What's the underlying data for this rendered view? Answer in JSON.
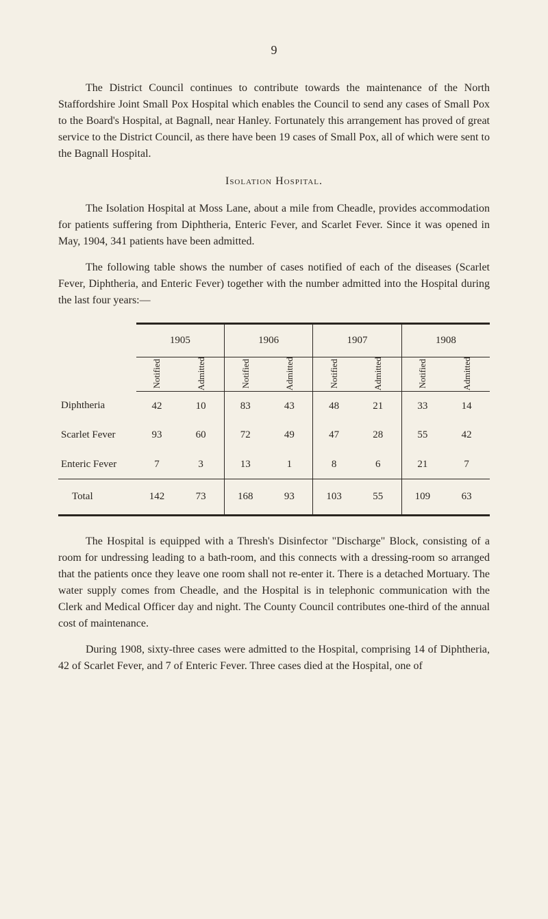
{
  "page_number": "9",
  "paragraphs": {
    "p1": "The District Council continues to contribute towards the maintenance of the North Staffordshire Joint Small Pox Hospital which enables the Council to send any cases of Small Pox to the Board's Hospital, at Bagnall, near Hanley. Fortunately this arrangement has proved of great service to the District Council, as there have been 19 cases of Small Pox, all of which were sent to the Bagnall Hospital.",
    "heading1": "Isolation Hospital.",
    "p2": "The Isolation Hospital at Moss Lane, about a mile from Cheadle, provides accommodation for patients suffering from Diphtheria, Enteric Fever, and Scarlet Fever. Since it was opened in May, 1904, 341 patients have been admitted.",
    "p3": "The following table shows the number of cases notified of each of the diseases (Scarlet Fever, Diphtheria, and Enteric Fever) together with the number admitted into the Hospital during the last four years:—",
    "p4": "The Hospital is equipped with a Thresh's Disinfector \"Discharge\" Block, consisting of a room for undressing leading to a bath-room, and this connects with a dressing-room so arranged that the patients once they leave one room shall not re-enter it. There is a detached Mortuary. The water supply comes from Cheadle, and the Hospital is in telephonic communication with the Clerk and Medical Officer day and night. The County Council contributes one-third of the annual cost of maintenance.",
    "p5": "During 1908, sixty-three cases were admitted to the Hospital, comprising 14 of Diphtheria, 42 of Scarlet Fever, and 7 of Enteric Fever. Three cases died at the Hospital, one of"
  },
  "table": {
    "years": [
      "1905",
      "1906",
      "1907",
      "1908"
    ],
    "sub_headers": [
      "Notified",
      "Admitted"
    ],
    "rows": [
      {
        "label": "Diphtheria",
        "values": [
          "42",
          "10",
          "83",
          "43",
          "48",
          "21",
          "33",
          "14"
        ]
      },
      {
        "label": "Scarlet Fever",
        "values": [
          "93",
          "60",
          "72",
          "49",
          "47",
          "28",
          "55",
          "42"
        ]
      },
      {
        "label": "Enteric Fever",
        "values": [
          "7",
          "3",
          "13",
          "1",
          "8",
          "6",
          "21",
          "7"
        ]
      }
    ],
    "total": {
      "label": "Total",
      "values": [
        "142",
        "73",
        "168",
        "93",
        "103",
        "55",
        "109",
        "63"
      ]
    },
    "colors": {
      "border": "#2a2520",
      "background": "#f4f0e6",
      "text": "#2a2520"
    },
    "font_size": 15,
    "border_width_heavy": 3,
    "border_width_light": 1
  }
}
